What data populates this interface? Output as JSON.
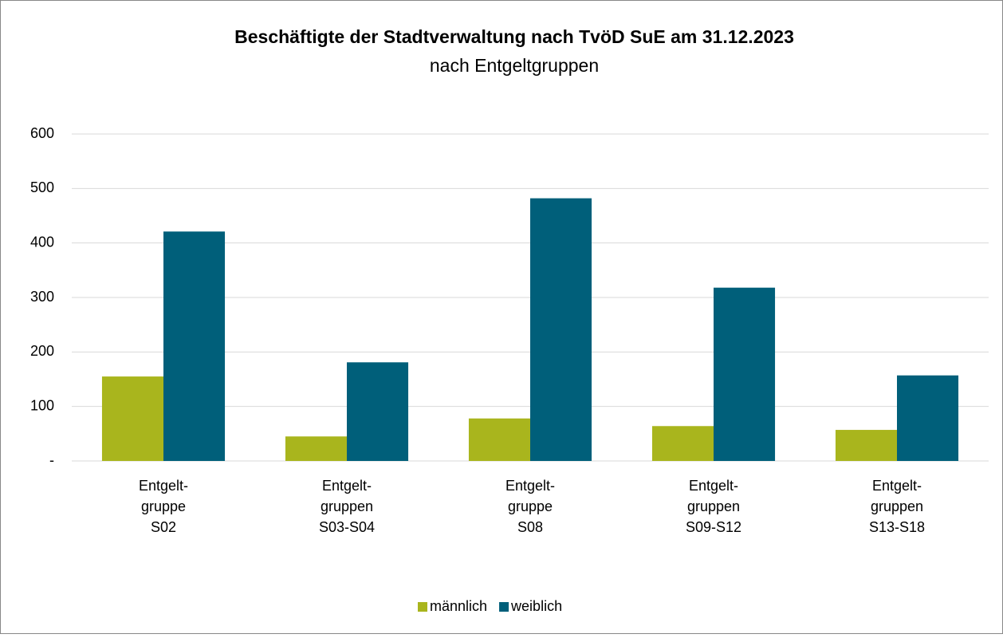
{
  "chart_data": {
    "type": "bar",
    "title": "Beschäftigte der Stadtverwaltung nach TvöD SuE am 31.12.2023",
    "subtitle": "nach Entgeltgruppen",
    "categories": [
      [
        "Entgelt-",
        "gruppe",
        "S02"
      ],
      [
        "Entgelt-",
        "gruppen",
        "S03-S04"
      ],
      [
        "Entgelt-",
        "gruppe",
        "S08"
      ],
      [
        "Entgelt-",
        "gruppen",
        "S09-S12"
      ],
      [
        "Entgelt-",
        "gruppen",
        "S13-S18"
      ]
    ],
    "series": [
      {
        "name": "männlich",
        "color": "#a9b51d",
        "values": [
          155,
          45,
          78,
          64,
          57
        ]
      },
      {
        "name": "weiblich",
        "color": "#005f7a",
        "values": [
          421,
          181,
          482,
          318,
          157
        ]
      }
    ],
    "ylim": [
      0,
      600
    ],
    "yticks": [
      {
        "value": 0,
        "label": "-"
      },
      100,
      200,
      300,
      400,
      500,
      600
    ],
    "grid": true,
    "legend": "bottom"
  }
}
